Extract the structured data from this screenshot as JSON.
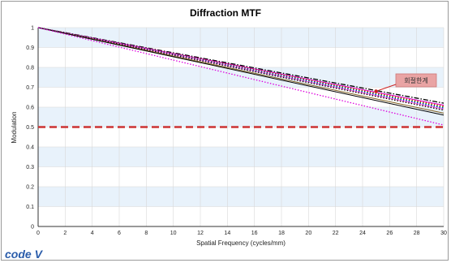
{
  "chart_data": {
    "type": "line",
    "title": "Diffraction MTF",
    "xlabel": "Spatial Frequency (cycles/mm)",
    "ylabel": "Modulation",
    "xlim": [
      0,
      30
    ],
    "ylim": [
      0,
      1
    ],
    "xticks": [
      "0",
      "2",
      "4",
      "6",
      "8",
      "10",
      "12",
      "14",
      "16",
      "18",
      "20",
      "22",
      "24",
      "26",
      "28",
      "30"
    ],
    "yticks": [
      "0",
      "0.1",
      "0.2",
      "0.3",
      "0.4",
      "0.5",
      "0.6",
      "0.7",
      "0.8",
      "0.9",
      "1"
    ],
    "background": "alternating light-blue horizontal bands",
    "series": [
      {
        "color": "#000000",
        "style": "dashdot",
        "x": [
          0,
          30
        ],
        "y": [
          1.0,
          0.62
        ]
      },
      {
        "color": "#cc00cc",
        "style": "solid",
        "x": [
          0,
          30
        ],
        "y": [
          1.0,
          0.61
        ]
      },
      {
        "color": "#ff0000",
        "style": "dotted",
        "x": [
          0,
          30
        ],
        "y": [
          1.0,
          0.605
        ]
      },
      {
        "color": "#00aa00",
        "style": "dotted",
        "x": [
          0,
          30
        ],
        "y": [
          1.0,
          0.6
        ]
      },
      {
        "color": "#0000ff",
        "style": "dotted",
        "x": [
          0,
          30
        ],
        "y": [
          1.0,
          0.595
        ]
      },
      {
        "color": "#ff66cc",
        "style": "solid",
        "x": [
          0,
          30
        ],
        "y": [
          1.0,
          0.59
        ]
      },
      {
        "color": "#000000",
        "style": "dotted",
        "x": [
          0,
          30
        ],
        "y": [
          1.0,
          0.585
        ]
      },
      {
        "color": "#806020",
        "style": "solid",
        "x": [
          0,
          30
        ],
        "y": [
          1.0,
          0.57
        ]
      },
      {
        "color": "#000000",
        "style": "solid",
        "x": [
          0,
          30
        ],
        "y": [
          1.0,
          0.56
        ]
      },
      {
        "color": "#dd00dd",
        "style": "dotted",
        "x": [
          0,
          30
        ],
        "y": [
          1.0,
          0.51
        ]
      }
    ],
    "reference_line": {
      "y": 0.5,
      "color": "#cc3333",
      "style": "dashed"
    },
    "annotation": {
      "text": "회절한계",
      "target_x": 25,
      "target_y": 0.68
    },
    "colors": {
      "band": "#e8f2fb",
      "annotation_box": "#e9a4a4",
      "reference": "#cc3333"
    }
  },
  "logo": {
    "text": "code V"
  }
}
